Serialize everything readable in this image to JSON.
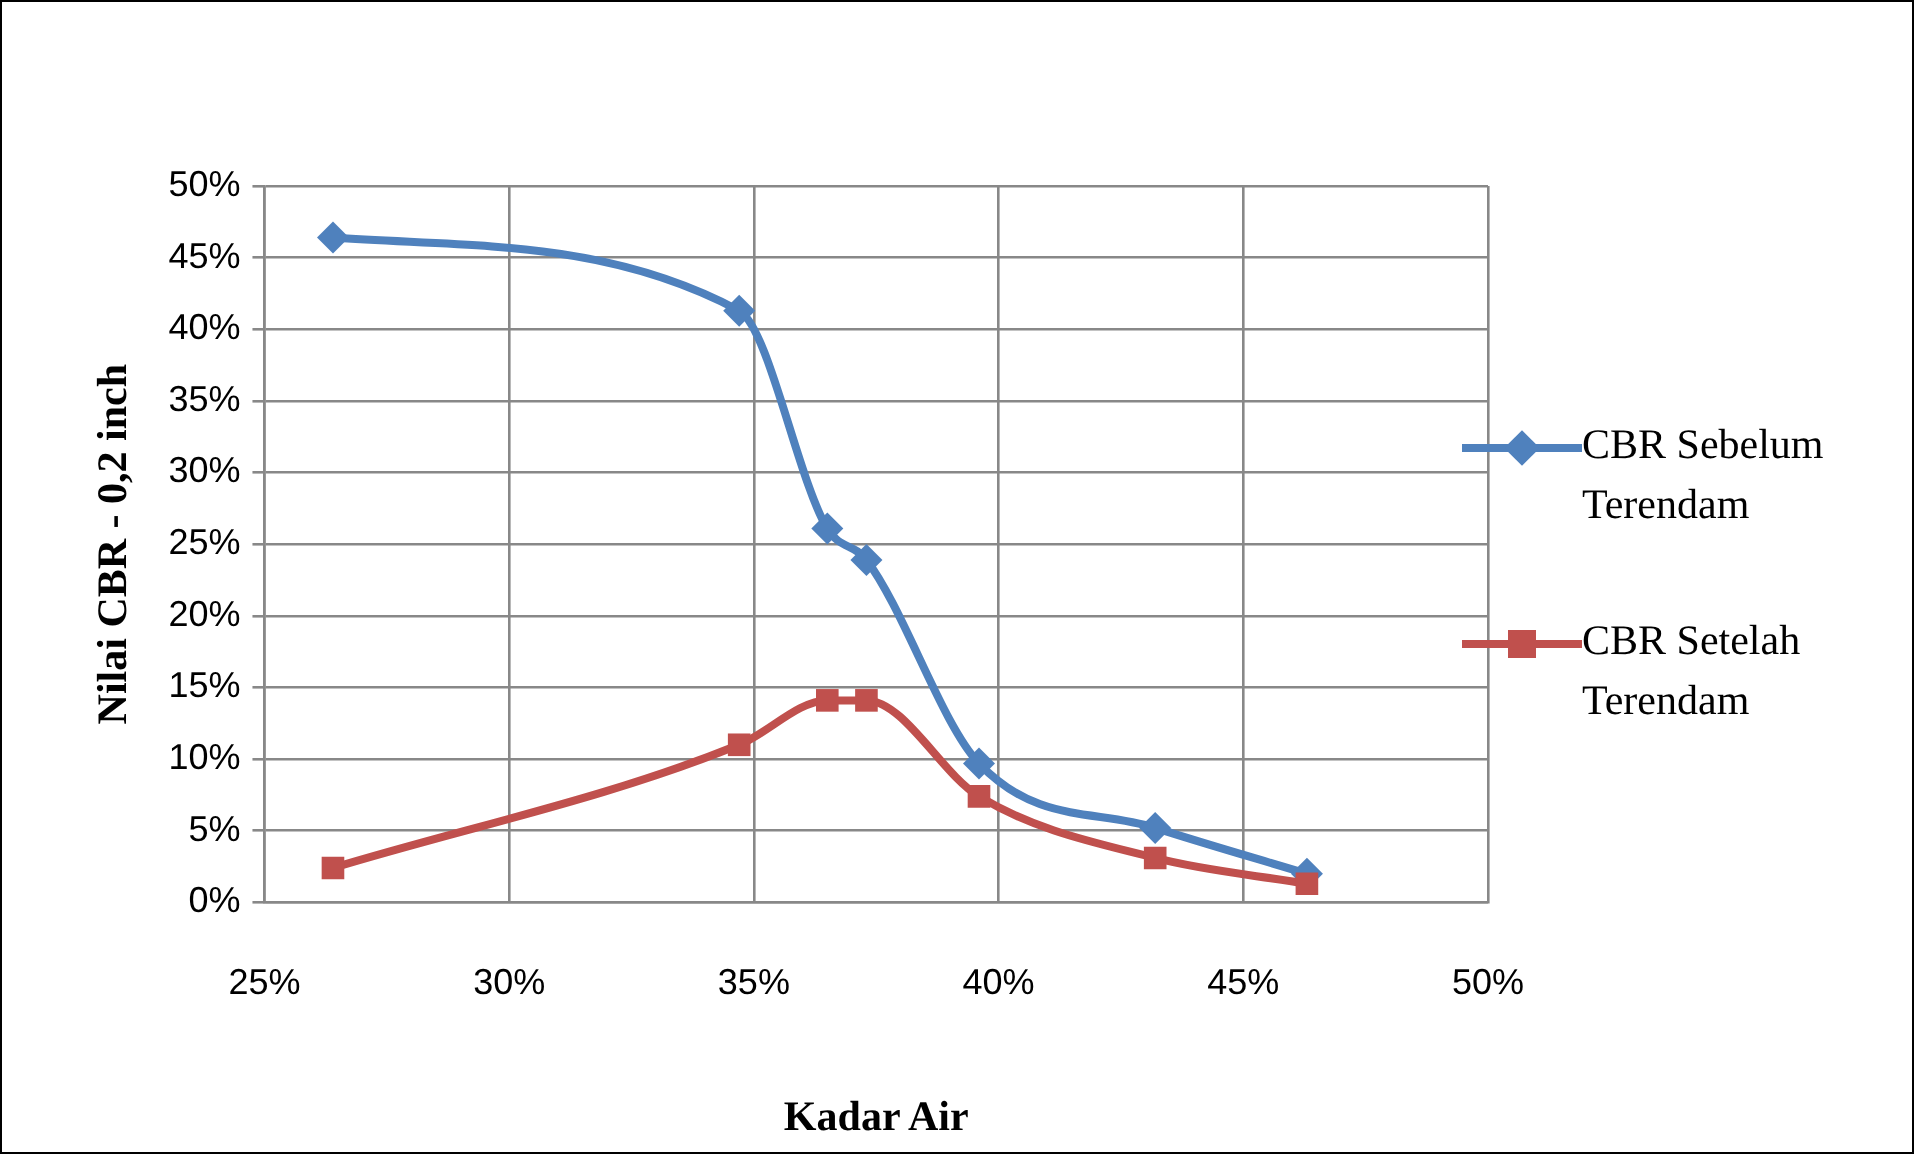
{
  "chart_data": {
    "type": "line",
    "xlabel": "Kadar Air",
    "ylabel": "Nilai CBR - 0,2 inch",
    "xlim": [
      25,
      50
    ],
    "ylim": [
      0,
      50
    ],
    "xticks": [
      {
        "value": 25,
        "label": "25%"
      },
      {
        "value": 30,
        "label": "30%"
      },
      {
        "value": 35,
        "label": "35%"
      },
      {
        "value": 40,
        "label": "40%"
      },
      {
        "value": 45,
        "label": "45%"
      },
      {
        "value": 50,
        "label": "50%"
      }
    ],
    "yticks": [
      {
        "value": 0,
        "label": "0%"
      },
      {
        "value": 5,
        "label": "5%"
      },
      {
        "value": 10,
        "label": "10%"
      },
      {
        "value": 15,
        "label": "15%"
      },
      {
        "value": 20,
        "label": "20%"
      },
      {
        "value": 25,
        "label": "25%"
      },
      {
        "value": 30,
        "label": "30%"
      },
      {
        "value": 35,
        "label": "35%"
      },
      {
        "value": 40,
        "label": "40%"
      },
      {
        "value": 45,
        "label": "45%"
      },
      {
        "value": 50,
        "label": "50%"
      }
    ],
    "grid": true,
    "legend": "right",
    "series": [
      {
        "name": "CBR Sebelum Terendam",
        "color": "#4f81bd",
        "marker": "diamond",
        "x": [
          26.4,
          34.7,
          36.5,
          37.3,
          39.6,
          43.2,
          46.3
        ],
        "values": [
          46.4,
          41.3,
          26.1,
          23.9,
          9.7,
          5.2,
          2.0
        ]
      },
      {
        "name": "CBR Setelah Terendam",
        "color": "#c0504d",
        "marker": "square",
        "x": [
          26.4,
          34.7,
          36.5,
          37.3,
          39.6,
          43.2,
          46.3
        ],
        "values": [
          2.4,
          11.0,
          14.1,
          14.1,
          7.4,
          3.1,
          1.3
        ]
      }
    ]
  }
}
